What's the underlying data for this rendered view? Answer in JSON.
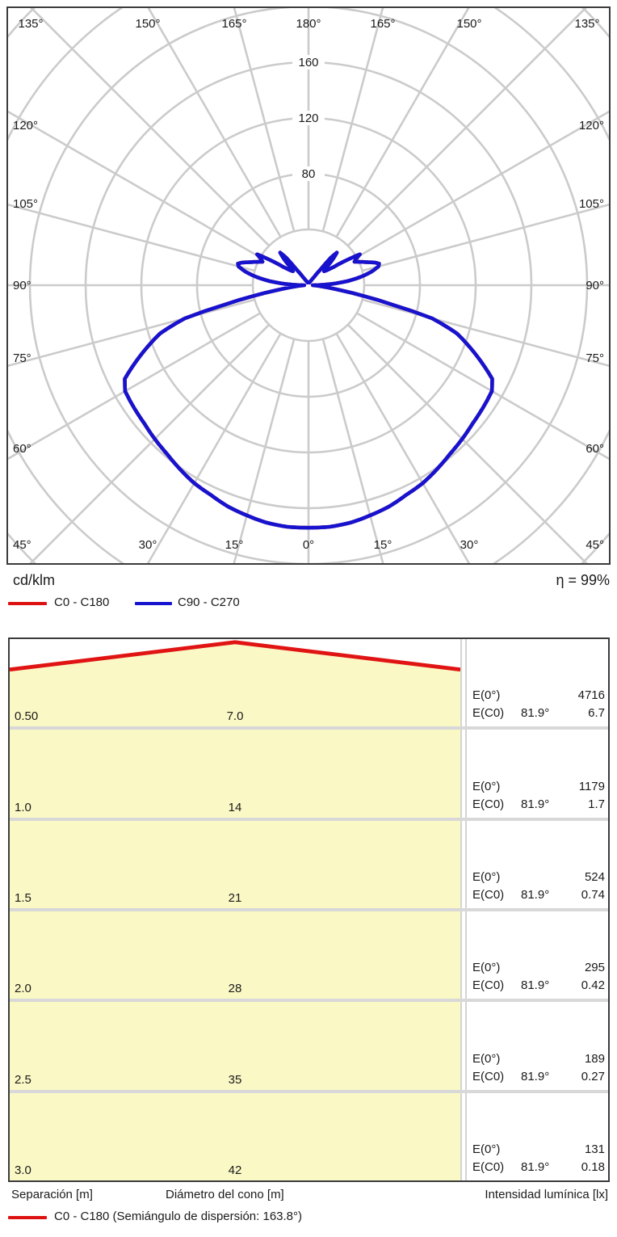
{
  "polar_chart": {
    "unit_label": "cd/klm",
    "efficiency_label": "η = 99%",
    "legend": [
      {
        "label": "C0 - C180",
        "color": "#dd1111"
      },
      {
        "label": "C90 - C270",
        "color": "#1613cf"
      }
    ],
    "radial_tick_labels": [
      "80",
      "120",
      "160"
    ],
    "angle_labels_top": [
      "135°",
      "150°",
      "165°",
      "180°",
      "165°",
      "150°",
      "135°"
    ],
    "angle_labels_left": [
      "120°",
      "105°",
      "90°",
      "75°",
      "60°",
      "45°"
    ],
    "angle_labels_right": [
      "120°",
      "105°",
      "90°",
      "75°",
      "60°",
      "45°"
    ],
    "angle_labels_bottom": [
      "30°",
      "15°",
      "0°",
      "15°",
      "30°"
    ],
    "grid_color": "#cbcbcb",
    "border_color": "#3b3b3b"
  },
  "chart_data": [
    {
      "type": "line",
      "subtype": "polar-photometric",
      "unit": "cd/klm",
      "efficiency": "η = 99%",
      "angle_grid_step_deg": 15,
      "radial_ticks": [
        40,
        80,
        120,
        160,
        200
      ],
      "radial_tick_labeled": [
        80,
        120,
        160
      ],
      "series": [
        {
          "name": "C0 - C180",
          "color": "#dd1111",
          "note": "coincides with C90 - C270 curve (hidden behind it)",
          "gamma_deg": [
            0,
            5,
            10,
            15,
            20,
            25,
            30,
            35,
            40,
            45,
            50,
            55,
            60,
            63,
            66,
            69,
            72,
            75,
            77,
            79,
            81,
            83,
            85,
            88,
            90,
            93,
            96,
            99,
            102,
            105,
            107,
            109,
            111,
            114,
            117,
            119,
            121,
            123,
            126,
            129,
            132,
            135,
            137,
            139,
            141,
            143,
            146,
            150,
            155,
            160,
            170,
            180
          ],
          "values_cd_per_klm": [
            174,
            174,
            173,
            171,
            169,
            166,
            164,
            161,
            158,
            156,
            154,
            153,
            152,
            148,
            136,
            124,
            112,
            92,
            61,
            40,
            24,
            14,
            9,
            4,
            3,
            16,
            28,
            38,
            46,
            52,
            53,
            50,
            46,
            41,
            37,
            39,
            43,
            34,
            22,
            17,
            15,
            19,
            26,
            31,
            25,
            13,
            7,
            4,
            3,
            2,
            2,
            2
          ]
        },
        {
          "name": "C90 - C270",
          "color": "#1613cf",
          "gamma_deg": [
            0,
            5,
            10,
            15,
            20,
            25,
            30,
            35,
            40,
            45,
            50,
            55,
            60,
            63,
            66,
            69,
            72,
            75,
            77,
            79,
            81,
            83,
            85,
            88,
            90,
            93,
            96,
            99,
            102,
            105,
            107,
            109,
            111,
            114,
            117,
            119,
            121,
            123,
            126,
            129,
            132,
            135,
            137,
            139,
            141,
            143,
            146,
            150,
            155,
            160,
            170,
            180
          ],
          "values_cd_per_klm": [
            174,
            174,
            173,
            171,
            169,
            166,
            164,
            161,
            158,
            156,
            154,
            153,
            152,
            148,
            136,
            124,
            112,
            92,
            61,
            40,
            24,
            14,
            9,
            4,
            3,
            16,
            28,
            38,
            46,
            52,
            53,
            50,
            46,
            41,
            37,
            39,
            43,
            34,
            22,
            17,
            15,
            19,
            26,
            31,
            25,
            13,
            7,
            4,
            3,
            2,
            2,
            2
          ]
        }
      ]
    },
    {
      "type": "table",
      "title": "cone diagram",
      "columns": [
        "Separación [m]",
        "Diámetro del cono [m]",
        "Intensidad lumínica [lx]"
      ],
      "rows": [
        {
          "separation": 0.5,
          "diameter": 7.0,
          "E0": 4716,
          "EC0_angle": 81.9,
          "EC0": 6.7
        },
        {
          "separation": 1.0,
          "diameter": 14,
          "E0": 1179,
          "EC0_angle": 81.9,
          "EC0": 1.7
        },
        {
          "separation": 1.5,
          "diameter": 21,
          "E0": 524,
          "EC0_angle": 81.9,
          "EC0": 0.74
        },
        {
          "separation": 2.0,
          "diameter": 28,
          "E0": 295,
          "EC0_angle": 81.9,
          "EC0": 0.42
        },
        {
          "separation": 2.5,
          "diameter": 35,
          "E0": 189,
          "EC0_angle": 81.9,
          "EC0": 0.27
        },
        {
          "separation": 3.0,
          "diameter": 42,
          "E0": 131,
          "EC0_angle": 81.9,
          "EC0": 0.18
        }
      ]
    }
  ],
  "cone_table": {
    "fill_color": "#faf9c6",
    "cone_color": "#e11414",
    "cone_row_index": 0,
    "rows": [
      {
        "separation": "0.50",
        "diameter": "7.0",
        "e0_label": "E(0°)",
        "e0": "4716",
        "ec0_label": "E(C0)",
        "angle": "81.9°",
        "ec0": "6.7"
      },
      {
        "separation": "1.0",
        "diameter": "14",
        "e0_label": "E(0°)",
        "e0": "1179",
        "ec0_label": "E(C0)",
        "angle": "81.9°",
        "ec0": "1.7"
      },
      {
        "separation": "1.5",
        "diameter": "21",
        "e0_label": "E(0°)",
        "e0": "524",
        "ec0_label": "E(C0)",
        "angle": "81.9°",
        "ec0": "0.74"
      },
      {
        "separation": "2.0",
        "diameter": "28",
        "e0_label": "E(0°)",
        "e0": "295",
        "ec0_label": "E(C0)",
        "angle": "81.9°",
        "ec0": "0.42"
      },
      {
        "separation": "2.5",
        "diameter": "35",
        "e0_label": "E(0°)",
        "e0": "189",
        "ec0_label": "E(C0)",
        "angle": "81.9°",
        "ec0": "0.27"
      },
      {
        "separation": "3.0",
        "diameter": "42",
        "e0_label": "E(0°)",
        "e0": "131",
        "ec0_label": "E(C0)",
        "angle": "81.9°",
        "ec0": "0.18"
      }
    ]
  },
  "footer": {
    "col1": "Separación [m]",
    "col2": "Diámetro del cono [m]",
    "col3": "Intensidad lumínica [lx]",
    "legend_label": "C0 - C180 (Semiángulo de dispersión: 163.8°)",
    "legend_color": "#dd1111"
  }
}
